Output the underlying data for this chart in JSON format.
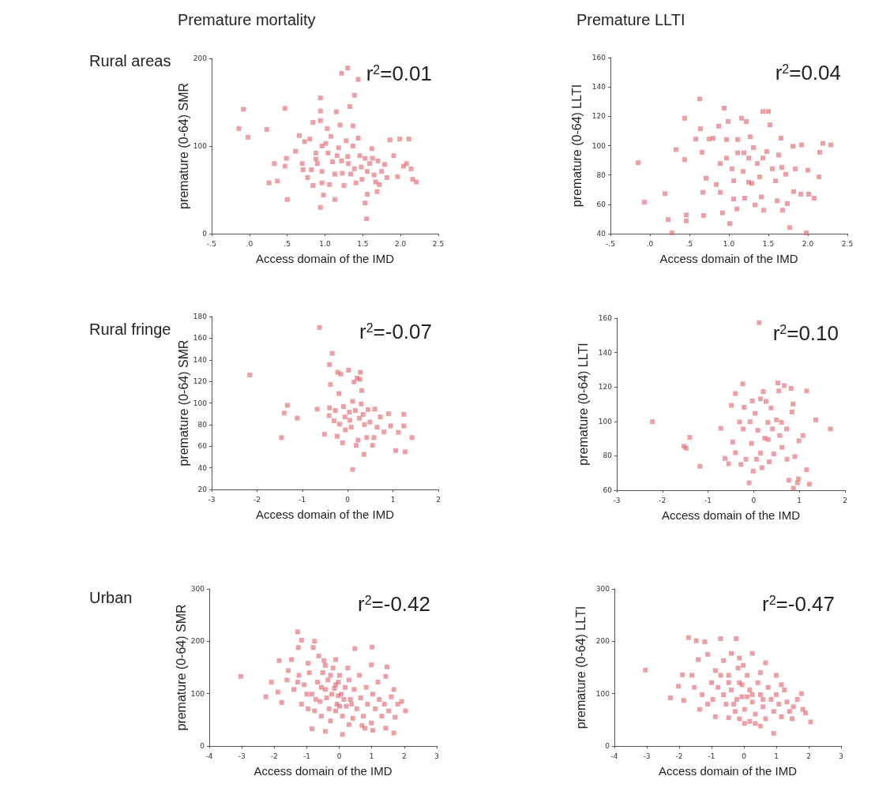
{
  "chart_data": [
    {
      "type": "scatter",
      "title": "Premature mortality",
      "subtitle": "Rural areas",
      "xlabel": "Access domain of the IMD",
      "ylabel": "premature (0-64) SMR",
      "annotations": [
        "r$^{2}$=0.01"
      ],
      "color": "#e0606a",
      "marker": "square",
      "grid": false,
      "xlim": [
        -0.5,
        2.5
      ],
      "ylim": [
        0,
        200
      ],
      "xticks": [
        {
          "value": -0.5,
          "label": "-.5"
        },
        {
          "value": 0,
          "label": ".0"
        },
        {
          "value": 0.5,
          "label": ".5"
        },
        {
          "value": 1,
          "label": "1.0"
        },
        {
          "value": 1.5,
          "label": "1.5"
        },
        {
          "value": 2,
          "label": "2.0"
        },
        {
          "value": 2.5,
          "label": "2.5"
        }
      ],
      "yticks": [
        0,
        100,
        200
      ],
      "x": [
        -0.08,
        -0.14,
        -0.02,
        0.23,
        0.47,
        0.49,
        0.47,
        0.33,
        0.26,
        0.37,
        0.5,
        0.94,
        0.94,
        0.94,
        1.22,
        1.3,
        1.44,
        1.39,
        1.33,
        1.15,
        1.55,
        1.53,
        1.56,
        1.69,
        0.66,
        0.73,
        0.61,
        0.7,
        0.71,
        0.82,
        0.84,
        0.88,
        0.9,
        0.96,
        0.96,
        0.96,
        0.98,
        1.03,
        1.04,
        1.06,
        1.08,
        1.1,
        1.13,
        1.13,
        1.18,
        1.2,
        1.22,
        1.23,
        1.25,
        1.28,
        1.3,
        1.31,
        1.34,
        1.37,
        1.37,
        1.39,
        1.41,
        1.44,
        1.46,
        1.48,
        1.49,
        1.53,
        1.56,
        1.59,
        1.62,
        1.63,
        1.65,
        1.67,
        1.7,
        1.72,
        1.75,
        1.79,
        1.82,
        1.86,
        1.91,
        1.96,
        1.99,
        2.04,
        2.08,
        2.11,
        2.14,
        2.16,
        2.21,
        0.8,
        0.84,
        0.94,
        1.01,
        1.16,
        0.88,
        0.77
      ],
      "values": [
        142,
        120,
        110,
        119,
        143,
        86,
        77,
        80,
        58,
        60,
        39,
        30,
        155,
        140,
        183,
        189,
        176,
        158,
        145,
        139,
        17,
        35,
        45,
        48,
        112,
        105,
        94,
        80,
        73,
        73,
        55,
        92,
        80,
        100,
        71,
        58,
        44,
        120,
        92,
        56,
        111,
        82,
        68,
        39,
        98,
        124,
        83,
        69,
        55,
        106,
        88,
        80,
        68,
        123,
        100,
        74,
        58,
        109,
        89,
        76,
        62,
        86,
        71,
        80,
        97,
        86,
        67,
        59,
        83,
        56,
        71,
        79,
        64,
        107,
        89,
        65,
        108,
        77,
        80,
        108,
        74,
        62,
        59,
        108,
        127,
        129,
        103,
        89,
        85,
        64
      ]
    },
    {
      "type": "scatter",
      "title": "Premature LLTI",
      "xlabel": "Access domain of the IMD",
      "ylabel": "premature (0-64) LLTI",
      "annotations": [
        "r$^{2}$=0.04"
      ],
      "color": "#e0606a",
      "marker": "square",
      "grid": false,
      "xlim": [
        -0.5,
        2.5
      ],
      "ylim": [
        40,
        160
      ],
      "xticks": [
        {
          "value": -0.5,
          "label": "-.5"
        },
        {
          "value": 0,
          "label": ".0"
        },
        {
          "value": 0.5,
          "label": ".5"
        },
        {
          "value": 1,
          "label": "1.0"
        },
        {
          "value": 1.5,
          "label": "1.5"
        },
        {
          "value": 2,
          "label": "2.0"
        },
        {
          "value": 2.5,
          "label": "2.5"
        }
      ],
      "yticks": [
        40,
        60,
        80,
        100,
        120,
        140,
        160
      ],
      "x": [
        -0.15,
        -0.07,
        0.19,
        0.23,
        0.28,
        0.33,
        0.44,
        0.44,
        0.46,
        0.46,
        0.63,
        0.64,
        0.58,
        0.66,
        0.67,
        0.68,
        0.71,
        0.75,
        0.8,
        0.84,
        0.87,
        0.89,
        0.89,
        0.92,
        0.94,
        0.97,
        0.97,
        0.99,
        1.01,
        1.04,
        1.06,
        1.06,
        1.1,
        1.11,
        1.16,
        1.18,
        1.19,
        1.2,
        1.22,
        1.25,
        1.27,
        1.29,
        1.31,
        1.33,
        1.36,
        1.39,
        1.41,
        1.43,
        1.44,
        1.48,
        1.5,
        1.52,
        1.55,
        1.59,
        1.61,
        1.63,
        1.66,
        1.67,
        1.68,
        1.72,
        1.74,
        1.77,
        1.81,
        1.82,
        1.84,
        1.92,
        2.0,
        1.98,
        2.08,
        2.14,
        2.15,
        2.19,
        2.29,
        1.91,
        2.01,
        1.43,
        1.25,
        1.11
      ],
      "values": [
        88.4,
        61.5,
        67.3,
        49.6,
        40.5,
        97.3,
        118.7,
        90.5,
        52.7,
        48.7,
        131.8,
        111.5,
        104.5,
        95.5,
        68.2,
        52.4,
        77.8,
        104.5,
        105,
        73.5,
        113.3,
        87.8,
        68.2,
        54.2,
        125.6,
        104.2,
        91.5,
        116.5,
        46.9,
        84.2,
        76,
        63.6,
        56.9,
        104.2,
        118.7,
        82.4,
        95.1,
        64.2,
        116.4,
        91.5,
        106,
        74.2,
        98.7,
        59.6,
        87.8,
        78.7,
        65.1,
        123.3,
        56,
        96,
        123.3,
        114.2,
        84.2,
        76,
        62.4,
        93.6,
        105.1,
        85.1,
        56,
        80.5,
        60.5,
        44.2,
        99.6,
        68.7,
        84.2,
        100.5,
        83.3,
        40.5,
        64.2,
        78.7,
        95.5,
        101.5,
        100.5,
        66.9,
        66.9,
        91.5,
        75.1,
        95.1
      ]
    },
    {
      "type": "scatter",
      "subtitle": "Rural fringe",
      "xlabel": "Access domain of the IMD",
      "ylabel": "premature (0-64) SMR",
      "annotations": [
        "r$^{2}$=-0.07"
      ],
      "color": "#e0606a",
      "marker": "square",
      "grid": false,
      "xlim": [
        -3,
        2
      ],
      "ylim": [
        20,
        180
      ],
      "xticks": [
        -3,
        -2,
        -1,
        0,
        1,
        2
      ],
      "yticks": [
        20,
        40,
        60,
        80,
        100,
        120,
        140,
        160,
        180
      ],
      "x": [
        -2.16,
        -1.46,
        -1.4,
        -1.33,
        -1.11,
        -0.62,
        -0.67,
        -0.51,
        -0.34,
        -0.4,
        -0.38,
        -0.4,
        -0.41,
        -0.3,
        -0.27,
        -0.23,
        -0.22,
        -0.19,
        -0.18,
        -0.15,
        -0.11,
        -0.06,
        -0.05,
        0.02,
        0.04,
        0.05,
        0.08,
        0.11,
        0.14,
        0.17,
        0.19,
        0.21,
        0.23,
        0.26,
        0.28,
        0.3,
        0.31,
        0.34,
        0.36,
        0.37,
        0.42,
        0.45,
        0.49,
        0.55,
        0.58,
        0.6,
        0.65,
        0.72,
        0.8,
        0.9,
        0.95,
        1.06,
        1.12,
        1.24,
        1.27,
        1.24,
        1.42,
        0.27,
        0.11,
        -0.09
      ],
      "values": [
        126,
        68,
        90.7,
        97.9,
        86,
        169.9,
        94.3,
        71.1,
        145.9,
        135.6,
        117.1,
        95.5,
        88.3,
        83.5,
        93.1,
        69.2,
        128.4,
        108.7,
        80.4,
        126.7,
        63.2,
        87.1,
        75.2,
        130.3,
        91.5,
        84,
        77.6,
        38.5,
        119.5,
        93.1,
        60.8,
        123.1,
        65.6,
        85.9,
        128.4,
        99.1,
        111.6,
        89.5,
        52.4,
        80,
        68,
        93.9,
        82.4,
        60.8,
        68,
        94.3,
        77.6,
        87.1,
        73.2,
        90,
        78.8,
        56,
        72.8,
        89.5,
        54.8,
        78.8,
        68,
        121.9,
        101.5,
        96.7
      ]
    },
    {
      "type": "scatter",
      "xlabel": "Access domain of the IMD",
      "ylabel": "premature (0-64) LLTI",
      "annotations": [
        "r$^{2}$=0.10"
      ],
      "color": "#e0606a",
      "marker": "square",
      "grid": false,
      "xlim": [
        -3,
        2
      ],
      "ylim": [
        60,
        160
      ],
      "xticks": [
        -3,
        -2,
        -1,
        0,
        1,
        2
      ],
      "yticks": [
        60,
        80,
        100,
        120,
        140,
        160
      ],
      "x": [
        -2.22,
        -1.53,
        -1.48,
        -1.4,
        -1.18,
        -0.72,
        -0.63,
        -0.55,
        -0.49,
        -0.46,
        -0.4,
        -0.4,
        -0.31,
        -0.28,
        -0.24,
        -0.23,
        -0.21,
        -0.17,
        -0.1,
        -0.08,
        -0.05,
        -0.03,
        -0.01,
        0.03,
        0.06,
        0.09,
        0.12,
        0.15,
        0.18,
        0.21,
        0.24,
        0.27,
        0.31,
        0.32,
        0.34,
        0.38,
        0.41,
        0.44,
        0.5,
        0.53,
        0.55,
        0.57,
        0.61,
        0.62,
        0.67,
        0.72,
        0.73,
        0.77,
        0.82,
        0.84,
        0.87,
        0.9,
        0.96,
        0.98,
        0.99,
        1.08,
        1.16,
        1.16,
        1.36,
        1.22,
        1.68,
        0.86,
        0.15
      ],
      "values": [
        99.8,
        85.6,
        84.4,
        90.7,
        73.9,
        96,
        78.5,
        75.4,
        109.3,
        88,
        116.2,
        81.8,
        99.7,
        75,
        121.8,
        95.6,
        108.2,
        78,
        64.3,
        99.8,
        87.2,
        111.9,
        71.1,
        104.7,
        78,
        94.8,
        157.4,
        113.1,
        73.1,
        117.3,
        90.2,
        111.6,
        99.4,
        89.5,
        76.5,
        107.8,
        95.6,
        81.1,
        100.9,
        122.3,
        117.7,
        91.8,
        99.4,
        84.9,
        120.8,
        95.6,
        78,
        65.8,
        119.2,
        105.5,
        61.2,
        79.5,
        64.3,
        66.6,
        88.7,
        91.8,
        117.7,
        71.9,
        100.9,
        63.5,
        95.6,
        110.1,
        81.6
      ]
    },
    {
      "type": "scatter",
      "subtitle": "Urban",
      "xlabel": "Access domain of the IMD",
      "ylabel": "premature (0-64) SMR",
      "annotations": [
        "r$^{2}$=-0.42"
      ],
      "color": "#e0606a",
      "marker": "square",
      "grid": false,
      "xlim": [
        -4,
        3
      ],
      "ylim": [
        0,
        300
      ],
      "xticks": [
        -4,
        -3,
        -2,
        -1,
        0,
        1,
        2,
        3
      ],
      "yticks": [
        0,
        100,
        200,
        300
      ],
      "x": [
        -3.03,
        -2.26,
        -2.09,
        -1.85,
        -1.77,
        -1.89,
        -1.61,
        -1.47,
        -1.28,
        -1.16,
        -1.26,
        -0.76,
        -0.8,
        -0.96,
        -0.63,
        -0.47,
        -0.11,
        0.26,
        0.48,
        1.01,
        0.99,
        1.47,
        1.43,
        1.68,
        1.92,
        2.04,
        1.68,
        1.72,
        1.43,
        1.03,
        0.79,
        0.1,
        -0.43,
        -0.84,
        -0.96,
        -1.16,
        -1.4,
        -1.24,
        -1.08,
        -0.92,
        -0.84,
        -0.67,
        -0.59,
        -0.51,
        -0.43,
        -0.35,
        -0.31,
        -0.23,
        -0.19,
        -0.11,
        -0.07,
        0.01,
        0.06,
        0.1,
        0.18,
        0.22,
        0.3,
        0.34,
        0.42,
        0.46,
        0.54,
        0.62,
        0.66,
        0.74,
        0.83,
        0.87,
        0.99,
        1.03,
        1.11,
        1.19,
        1.23,
        1.31,
        1.39,
        1.52,
        1.6,
        1.8,
        -0.43,
        -0.11,
        -0.55,
        -0.76,
        -0.27,
        0.3,
        0.7,
        -0.03,
        -0.15,
        0.14,
        -0.39,
        -0.55,
        0.01,
        0.38,
        -0.72,
        -1.0,
        -1.28,
        -1.57,
        -0.03,
        -0.27
      ],
      "values": [
        133,
        94,
        122,
        163,
        83,
        103,
        126,
        165,
        218,
        202,
        188,
        200,
        188,
        158,
        172,
        163,
        165,
        149,
        186,
        189,
        155,
        151,
        133,
        108,
        85,
        67,
        25,
        55,
        34,
        30,
        34,
        22,
        28,
        33,
        71,
        80,
        108,
        135,
        117,
        140,
        99,
        122,
        85,
        140,
        108,
        126,
        71,
        99,
        149,
        117,
        80,
        135,
        99,
        57,
        112,
        76,
        126,
        89,
        53,
        108,
        71,
        135,
        92,
        57,
        112,
        80,
        44,
        99,
        71,
        122,
        89,
        57,
        80,
        67,
        94,
        80,
        154,
        67,
        57,
        67,
        48,
        41,
        39,
        96,
        110,
        89,
        92,
        112,
        76,
        80,
        89,
        99,
        122,
        144,
        122,
        135
      ]
    },
    {
      "type": "scatter",
      "xlabel": "Access domain of the IMD",
      "ylabel": "premature (0-64) LLTI",
      "annotations": [
        "r$^{2}$=-0.47"
      ],
      "color": "#e0606a",
      "marker": "square",
      "grid": false,
      "xlim": [
        -4,
        3
      ],
      "ylim": [
        0,
        300
      ],
      "xticks": [
        -4,
        -3,
        -2,
        -1,
        0,
        1,
        2,
        3
      ],
      "yticks": [
        0,
        100,
        200,
        300
      ],
      "x": [
        -3.04,
        -2.27,
        -2.02,
        -1.86,
        -1.9,
        -1.71,
        -1.47,
        -1.21,
        -1.37,
        -1.41,
        -1.12,
        -0.72,
        -0.24,
        0.26,
        0.67,
        1.0,
        1.16,
        1.78,
        2.06,
        0.92,
        0.51,
        0.02,
        -0.47,
        -0.88,
        -1.12,
        -1.29,
        -1.0,
        -0.88,
        -0.63,
        -0.47,
        -0.39,
        -0.31,
        -0.18,
        -0.14,
        -0.06,
        0.02,
        0.1,
        0.18,
        0.26,
        0.35,
        0.43,
        0.51,
        0.59,
        0.67,
        0.75,
        0.84,
        0.92,
        1.0,
        1.08,
        1.16,
        1.25,
        1.33,
        1.41,
        1.53,
        1.65,
        1.82,
        1.9,
        1.49,
        -0.63,
        -0.55,
        -0.8,
        -0.27,
        -0.14,
        0.18,
        0.35,
        -0.72,
        -0.39,
        -0.14,
        -0.02,
        0.51,
        -1.61,
        -1.53,
        -0.96,
        0.1,
        -0.22,
        0.26,
        0.59,
        -0.06,
        -0.47
      ],
      "values": [
        145,
        92,
        114,
        87,
        136,
        207,
        201,
        199,
        70,
        165,
        175,
        205,
        205,
        177,
        159,
        135,
        117,
        100,
        46,
        24,
        38,
        43,
        54,
        56,
        80,
        98,
        121,
        144,
        163,
        135,
        107,
        80,
        149,
        121,
        94,
        70,
        135,
        107,
        84,
        61,
        121,
        98,
        75,
        52,
        112,
        89,
        66,
        98,
        80,
        56,
        107,
        84,
        66,
        75,
        89,
        70,
        63,
        52,
        98,
        80,
        112,
        66,
        52,
        47,
        43,
        135,
        177,
        168,
        154,
        140,
        135,
        112,
        89,
        94,
        89,
        98,
        89,
        117,
        121
      ]
    }
  ]
}
